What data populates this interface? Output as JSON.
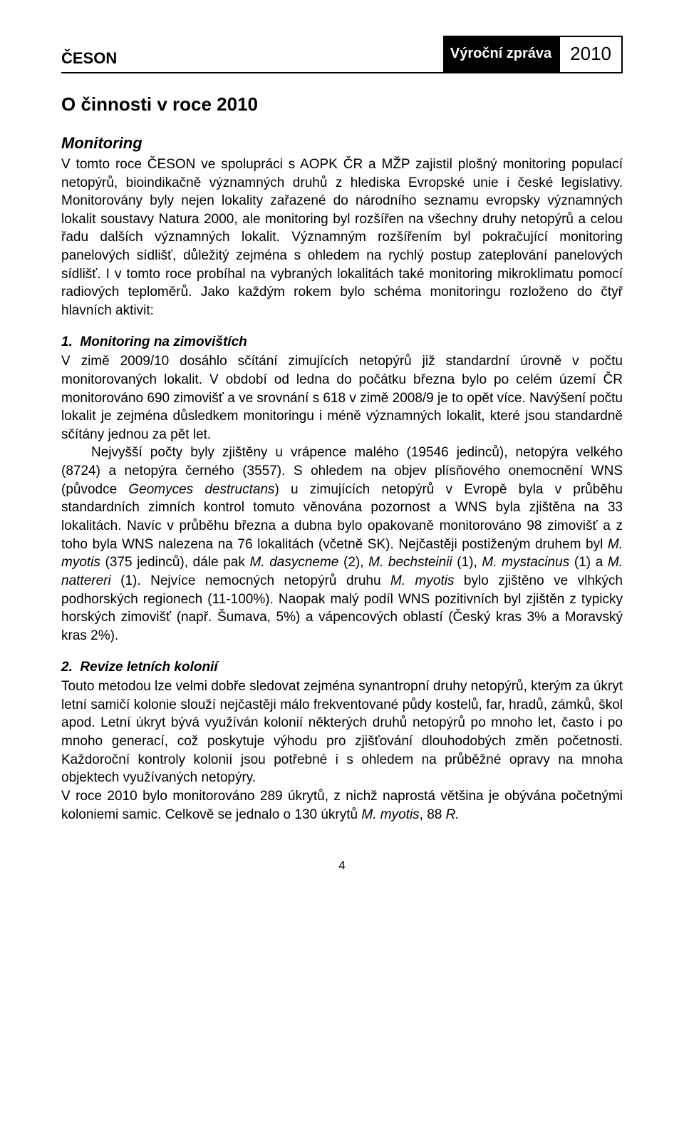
{
  "header": {
    "org": "ČESON",
    "mid": "Výroční zpráva",
    "year": "2010"
  },
  "title": "O činnosti v roce 2010",
  "monitoring": {
    "heading": "Monitoring",
    "para": "V tomto roce ČESON ve spolupráci s AOPK ČR a MŽP zajistil plošný monitoring populací netopýrů, bioindikačně významných druhů z hlediska Evropské unie i české legislativy. Monitorovány byly nejen lokality zařazené do národního seznamu evropsky významných lokalit soustavy Natura 2000, ale monitoring byl rozšířen na všechny druhy netopýrů a celou řadu dalších významných lokalit. Významným rozšířením byl pokračující monitoring panelových sídlišť, důležitý zejména s ohledem na rychlý postup zateplování panelových sídlišť. I v tomto roce probíhal na vybraných lokalitách také monitoring mikroklimatu pomocí radiových teploměrů. Jako každým rokem bylo schéma monitoringu rozloženo do čtyř hlavních aktivit:"
  },
  "sec1": {
    "heading": "1.  Monitoring na zimovištích",
    "p1": "V zimě 2009/10 dosáhlo sčítání zimujících netopýrů již standardní úrovně v počtu monitorovaných lokalit. V období od ledna do počátku března bylo po celém území ČR monitorováno 690 zimovišť a ve srovnání s 618 v zimě 2008/9 je to opět více. Navýšení počtu lokalit je zejména důsledkem monitoringu i méně významných lokalit, které jsou standardně sčítány jednou za pět let.",
    "p2_a": "Nejvyšší počty byly zjištěny u vrápence malého (19546 jedinců), netopýra velkého (8724) a netopýra černého (3557). S ohledem na objev plísňového onemocnění WNS (původce ",
    "p2_species1": "Geomyces destructans",
    "p2_b": ") u zimujících netopýrů v Evropě byla v průběhu standardních zimních kontrol tomuto věnována pozornost a WNS byla zjištěna na 33 lokalitách. Navíc v průběhu března a dubna bylo opakovaně monitorováno 98 zimovišť a z toho byla WNS nalezena na 76 lokalitách (včetně SK). Nejčastěji postiženým druhem byl ",
    "p2_m_myotis": "M. myotis",
    "p2_c": " (375 jedinců), dále pak ",
    "p2_m_dasy": "M. dasycneme",
    "p2_d": " (2), ",
    "p2_m_bech": "M. bechsteinii",
    "p2_e": " (1), ",
    "p2_m_myst": "M. mystacinus",
    "p2_f": " (1) a ",
    "p2_m_natt": "M. nattereri",
    "p2_g": " (1). Nejvíce nemocných netopýrů druhu ",
    "p2_m_myotis2": "M. myotis",
    "p2_h": " bylo zjištěno ve vlhkých podhorských regionech (11-100%). Naopak malý podíl WNS pozitivních byl zjištěn z typicky horských zimovišť (např. Šumava, 5%) a vápencových oblastí (Český kras 3% a Moravský kras 2%)."
  },
  "sec2": {
    "heading": "2.  Revize letních kolonií",
    "p1": "Touto metodou lze velmi dobře sledovat zejména synantropní druhy netopýrů, kterým za úkryt letní samičí kolonie slouží nejčastěji málo frekventované půdy kostelů, far, hradů, zámků, škol apod. Letní úkryt bývá využíván kolonií některých druhů netopýrů po mnoho let, často i po mnoho generací, což poskytuje výhodu pro zjišťování dlouhodobých změn početnosti. Každoroční kontroly kolonií jsou potřebné i s ohledem na průběžné opravy na mnoha objektech využívaných netopýry.",
    "p2_a": "V roce 2010 bylo monitorováno 289 úkrytů, z nichž naprostá většina je obývána početnými koloniemi samic. Celkově se jednalo o 130 úkrytů ",
    "p2_m_myotis": "M. myotis",
    "p2_b": ", 88 ",
    "p2_r": "R."
  },
  "page_number": "4"
}
